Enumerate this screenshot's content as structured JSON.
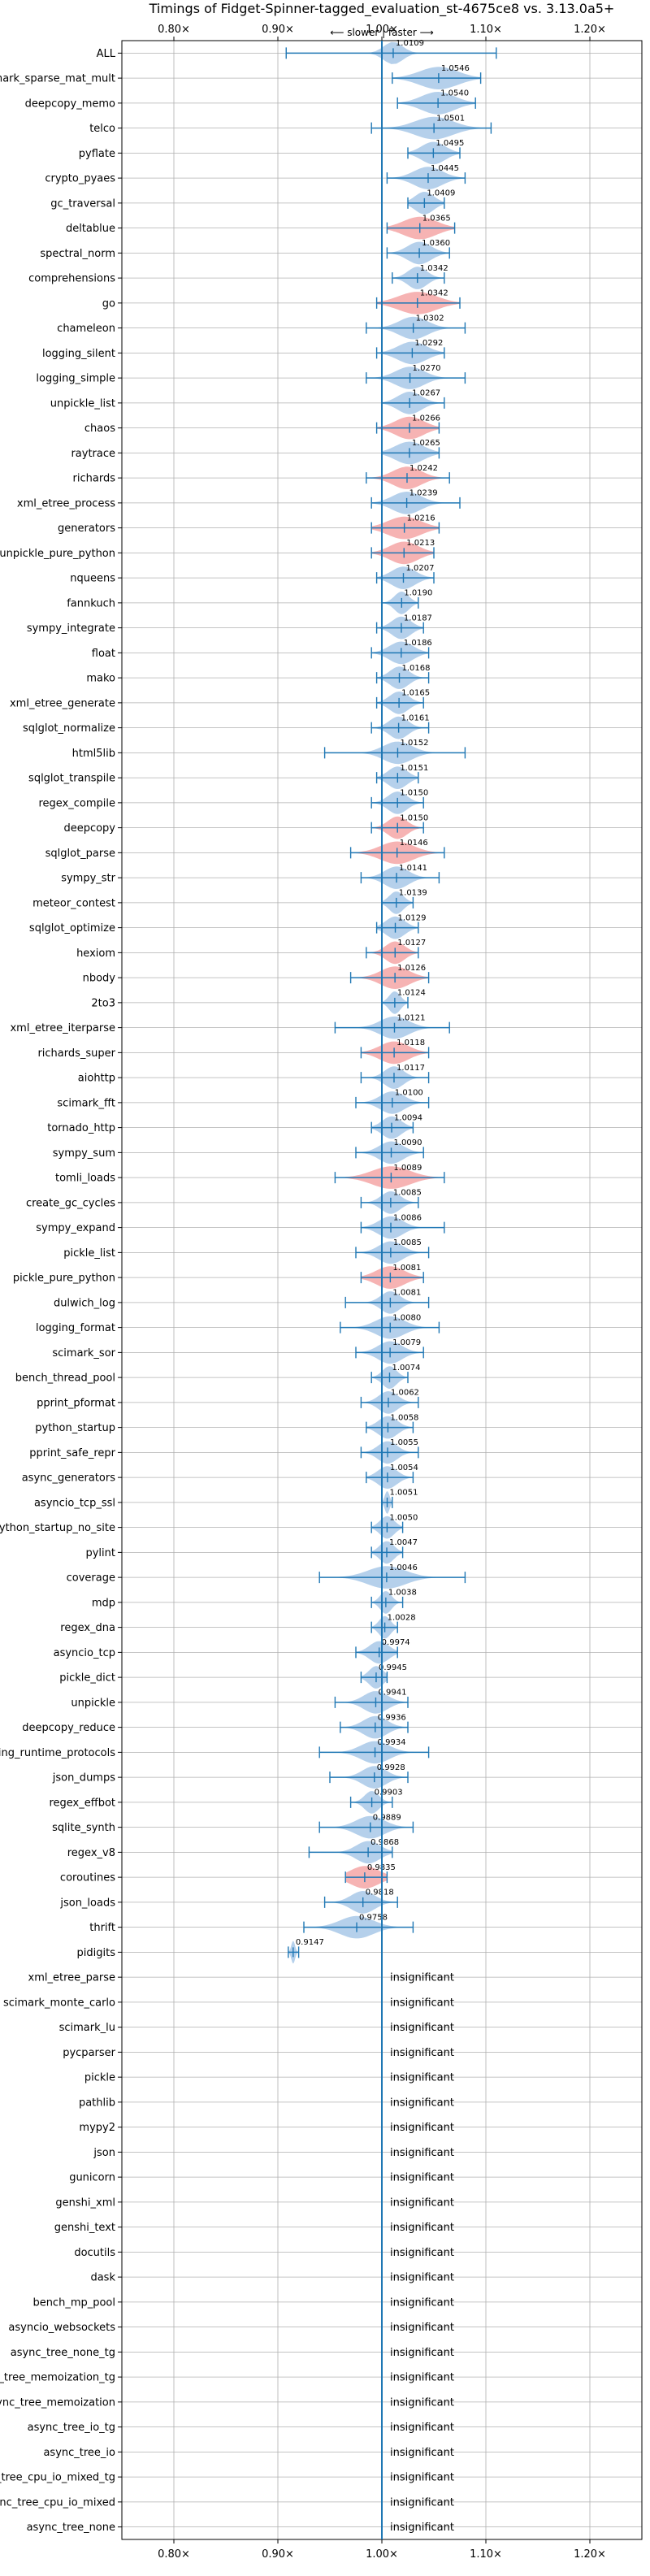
{
  "chart_data": {
    "type": "violin",
    "title": "Timings of Fidget-Spinner-tagged_evaluation_st-4675ce8 vs. 3.13.0a5+",
    "xlabel": "",
    "ylabel": "",
    "xlim": [
      0.75,
      1.25
    ],
    "x_ticks": [
      0.8,
      0.9,
      1.0,
      1.1,
      1.2
    ],
    "x_tick_labels": [
      "0.80×",
      "0.90×",
      "1.00×",
      "1.10×",
      "1.20×"
    ],
    "reference_line": 1.0,
    "direction_annotation": "⟵ slower | faster ⟶",
    "grid": true,
    "colors": {
      "faster": "#a8c8e8",
      "slower": "#f4a6a6",
      "whisker": "#1f77b4",
      "grid": "#b0b0b0"
    },
    "benchmarks": [
      {
        "name": "ALL",
        "value": 1.0109,
        "label": "1.0109",
        "lo": 0.908,
        "hi": 1.11,
        "spread": 0.02,
        "color": "blue"
      },
      {
        "name": "scimark_sparse_mat_mult",
        "value": 1.0546,
        "label": "1.0546",
        "lo": 1.01,
        "hi": 1.095,
        "spread": 0.04,
        "color": "blue"
      },
      {
        "name": "deepcopy_memo",
        "value": 1.054,
        "label": "1.0540",
        "lo": 1.015,
        "hi": 1.09,
        "spread": 0.035,
        "color": "blue"
      },
      {
        "name": "telco",
        "value": 1.0501,
        "label": "1.0501",
        "lo": 0.99,
        "hi": 1.105,
        "spread": 0.04,
        "color": "blue"
      },
      {
        "name": "pyflate",
        "value": 1.0495,
        "label": "1.0495",
        "lo": 1.025,
        "hi": 1.075,
        "spread": 0.025,
        "color": "blue"
      },
      {
        "name": "crypto_pyaes",
        "value": 1.0445,
        "label": "1.0445",
        "lo": 1.005,
        "hi": 1.08,
        "spread": 0.03,
        "color": "blue"
      },
      {
        "name": "gc_traversal",
        "value": 1.0409,
        "label": "1.0409",
        "lo": 1.025,
        "hi": 1.06,
        "spread": 0.02,
        "color": "blue"
      },
      {
        "name": "deltablue",
        "value": 1.0365,
        "label": "1.0365",
        "lo": 1.005,
        "hi": 1.07,
        "spread": 0.035,
        "color": "red"
      },
      {
        "name": "spectral_norm",
        "value": 1.036,
        "label": "1.0360",
        "lo": 1.005,
        "hi": 1.065,
        "spread": 0.025,
        "color": "blue"
      },
      {
        "name": "comprehensions",
        "value": 1.0342,
        "label": "1.0342",
        "lo": 1.01,
        "hi": 1.06,
        "spread": 0.02,
        "color": "blue"
      },
      {
        "name": "go",
        "value": 1.0342,
        "label": "1.0342",
        "lo": 0.995,
        "hi": 1.075,
        "spread": 0.04,
        "color": "red"
      },
      {
        "name": "chameleon",
        "value": 1.0302,
        "label": "1.0302",
        "lo": 0.985,
        "hi": 1.08,
        "spread": 0.03,
        "color": "blue"
      },
      {
        "name": "logging_silent",
        "value": 1.0292,
        "label": "1.0292",
        "lo": 0.995,
        "hi": 1.06,
        "spread": 0.03,
        "color": "blue"
      },
      {
        "name": "logging_simple",
        "value": 1.027,
        "label": "1.0270",
        "lo": 0.985,
        "hi": 1.08,
        "spread": 0.03,
        "color": "blue"
      },
      {
        "name": "unpickle_list",
        "value": 1.0267,
        "label": "1.0267",
        "lo": 1.0,
        "hi": 1.06,
        "spread": 0.025,
        "color": "blue"
      },
      {
        "name": "chaos",
        "value": 1.0266,
        "label": "1.0266",
        "lo": 0.995,
        "hi": 1.055,
        "spread": 0.03,
        "color": "red"
      },
      {
        "name": "raytrace",
        "value": 1.0265,
        "label": "1.0265",
        "lo": 1.0,
        "hi": 1.055,
        "spread": 0.03,
        "color": "blue"
      },
      {
        "name": "richards",
        "value": 1.0242,
        "label": "1.0242",
        "lo": 0.985,
        "hi": 1.065,
        "spread": 0.03,
        "color": "red"
      },
      {
        "name": "xml_etree_process",
        "value": 1.0239,
        "label": "1.0239",
        "lo": 0.99,
        "hi": 1.075,
        "spread": 0.03,
        "color": "blue"
      },
      {
        "name": "generators",
        "value": 1.0216,
        "label": "1.0216",
        "lo": 0.99,
        "hi": 1.055,
        "spread": 0.035,
        "color": "red"
      },
      {
        "name": "unpickle_pure_python",
        "value": 1.0213,
        "label": "1.0213",
        "lo": 0.99,
        "hi": 1.05,
        "spread": 0.03,
        "color": "red"
      },
      {
        "name": "nqueens",
        "value": 1.0207,
        "label": "1.0207",
        "lo": 0.995,
        "hi": 1.05,
        "spread": 0.025,
        "color": "blue"
      },
      {
        "name": "fannkuch",
        "value": 1.019,
        "label": "1.0190",
        "lo": 1.0,
        "hi": 1.035,
        "spread": 0.015,
        "color": "blue"
      },
      {
        "name": "sympy_integrate",
        "value": 1.0187,
        "label": "1.0187",
        "lo": 0.995,
        "hi": 1.04,
        "spread": 0.02,
        "color": "blue"
      },
      {
        "name": "float",
        "value": 1.0186,
        "label": "1.0186",
        "lo": 0.99,
        "hi": 1.045,
        "spread": 0.025,
        "color": "blue"
      },
      {
        "name": "mako",
        "value": 1.0168,
        "label": "1.0168",
        "lo": 0.995,
        "hi": 1.045,
        "spread": 0.02,
        "color": "blue"
      },
      {
        "name": "xml_etree_generate",
        "value": 1.0165,
        "label": "1.0165",
        "lo": 0.995,
        "hi": 1.04,
        "spread": 0.02,
        "color": "blue"
      },
      {
        "name": "sqlglot_normalize",
        "value": 1.0161,
        "label": "1.0161",
        "lo": 0.99,
        "hi": 1.045,
        "spread": 0.02,
        "color": "blue"
      },
      {
        "name": "html5lib",
        "value": 1.0152,
        "label": "1.0152",
        "lo": 0.945,
        "hi": 1.08,
        "spread": 0.03,
        "color": "blue"
      },
      {
        "name": "sqlglot_transpile",
        "value": 1.0151,
        "label": "1.0151",
        "lo": 0.995,
        "hi": 1.035,
        "spread": 0.02,
        "color": "blue"
      },
      {
        "name": "regex_compile",
        "value": 1.015,
        "label": "1.0150",
        "lo": 0.99,
        "hi": 1.04,
        "spread": 0.02,
        "color": "blue"
      },
      {
        "name": "deepcopy",
        "value": 1.015,
        "label": "1.0150",
        "lo": 0.99,
        "hi": 1.04,
        "spread": 0.02,
        "color": "red"
      },
      {
        "name": "sqlglot_parse",
        "value": 1.0146,
        "label": "1.0146",
        "lo": 0.97,
        "hi": 1.06,
        "spread": 0.035,
        "color": "red"
      },
      {
        "name": "sympy_str",
        "value": 1.0141,
        "label": "1.0141",
        "lo": 0.98,
        "hi": 1.055,
        "spread": 0.025,
        "color": "blue"
      },
      {
        "name": "meteor_contest",
        "value": 1.0139,
        "label": "1.0139",
        "lo": 1.0,
        "hi": 1.03,
        "spread": 0.015,
        "color": "blue"
      },
      {
        "name": "sqlglot_optimize",
        "value": 1.0129,
        "label": "1.0129",
        "lo": 0.995,
        "hi": 1.035,
        "spread": 0.02,
        "color": "blue"
      },
      {
        "name": "hexiom",
        "value": 1.0127,
        "label": "1.0127",
        "lo": 0.985,
        "hi": 1.035,
        "spread": 0.02,
        "color": "red"
      },
      {
        "name": "nbody",
        "value": 1.0126,
        "label": "1.0126",
        "lo": 0.97,
        "hi": 1.045,
        "spread": 0.03,
        "color": "red"
      },
      {
        "name": "2to3",
        "value": 1.0124,
        "label": "1.0124",
        "lo": 1.0,
        "hi": 1.025,
        "spread": 0.012,
        "color": "blue"
      },
      {
        "name": "xml_etree_iterparse",
        "value": 1.0121,
        "label": "1.0121",
        "lo": 0.955,
        "hi": 1.065,
        "spread": 0.03,
        "color": "blue"
      },
      {
        "name": "richards_super",
        "value": 1.0118,
        "label": "1.0118",
        "lo": 0.98,
        "hi": 1.045,
        "spread": 0.03,
        "color": "red"
      },
      {
        "name": "aiohttp",
        "value": 1.0117,
        "label": "1.0117",
        "lo": 0.98,
        "hi": 1.045,
        "spread": 0.02,
        "color": "blue"
      },
      {
        "name": "scimark_fft",
        "value": 1.01,
        "label": "1.0100",
        "lo": 0.975,
        "hi": 1.045,
        "spread": 0.025,
        "color": "blue"
      },
      {
        "name": "tornado_http",
        "value": 1.0094,
        "label": "1.0094",
        "lo": 0.99,
        "hi": 1.03,
        "spread": 0.02,
        "color": "blue"
      },
      {
        "name": "sympy_sum",
        "value": 1.009,
        "label": "1.0090",
        "lo": 0.975,
        "hi": 1.04,
        "spread": 0.025,
        "color": "blue"
      },
      {
        "name": "tomli_loads",
        "value": 1.0089,
        "label": "1.0089",
        "lo": 0.955,
        "hi": 1.06,
        "spread": 0.04,
        "color": "red"
      },
      {
        "name": "create_gc_cycles",
        "value": 1.0085,
        "label": "1.0085",
        "lo": 0.98,
        "hi": 1.035,
        "spread": 0.02,
        "color": "blue"
      },
      {
        "name": "sympy_expand",
        "value": 1.0086,
        "label": "1.0086",
        "lo": 0.98,
        "hi": 1.06,
        "spread": 0.025,
        "color": "blue"
      },
      {
        "name": "pickle_list",
        "value": 1.0085,
        "label": "1.0085",
        "lo": 0.975,
        "hi": 1.045,
        "spread": 0.025,
        "color": "blue"
      },
      {
        "name": "pickle_pure_python",
        "value": 1.0081,
        "label": "1.0081",
        "lo": 0.98,
        "hi": 1.04,
        "spread": 0.03,
        "color": "red"
      },
      {
        "name": "dulwich_log",
        "value": 1.0081,
        "label": "1.0081",
        "lo": 0.965,
        "hi": 1.045,
        "spread": 0.02,
        "color": "blue"
      },
      {
        "name": "logging_format",
        "value": 1.008,
        "label": "1.0080",
        "lo": 0.96,
        "hi": 1.055,
        "spread": 0.03,
        "color": "blue"
      },
      {
        "name": "scimark_sor",
        "value": 1.0079,
        "label": "1.0079",
        "lo": 0.975,
        "hi": 1.04,
        "spread": 0.025,
        "color": "blue"
      },
      {
        "name": "bench_thread_pool",
        "value": 1.0074,
        "label": "1.0074",
        "lo": 0.99,
        "hi": 1.025,
        "spread": 0.015,
        "color": "blue"
      },
      {
        "name": "pprint_pformat",
        "value": 1.0062,
        "label": "1.0062",
        "lo": 0.98,
        "hi": 1.035,
        "spread": 0.02,
        "color": "blue"
      },
      {
        "name": "python_startup",
        "value": 1.0058,
        "label": "1.0058",
        "lo": 0.985,
        "hi": 1.03,
        "spread": 0.02,
        "color": "blue"
      },
      {
        "name": "pprint_safe_repr",
        "value": 1.0055,
        "label": "1.0055",
        "lo": 0.98,
        "hi": 1.035,
        "spread": 0.02,
        "color": "blue"
      },
      {
        "name": "async_generators",
        "value": 1.0054,
        "label": "1.0054",
        "lo": 0.985,
        "hi": 1.03,
        "spread": 0.02,
        "color": "blue"
      },
      {
        "name": "asyncio_tcp_ssl",
        "value": 1.0051,
        "label": "1.0051",
        "lo": 1.0,
        "hi": 1.01,
        "spread": 0.005,
        "color": "blue"
      },
      {
        "name": "python_startup_no_site",
        "value": 1.005,
        "label": "1.0050",
        "lo": 0.99,
        "hi": 1.02,
        "spread": 0.015,
        "color": "blue"
      },
      {
        "name": "pylint",
        "value": 1.0047,
        "label": "1.0047",
        "lo": 0.99,
        "hi": 1.02,
        "spread": 0.015,
        "color": "blue"
      },
      {
        "name": "coverage",
        "value": 1.0046,
        "label": "1.0046",
        "lo": 0.94,
        "hi": 1.08,
        "spread": 0.04,
        "color": "blue"
      },
      {
        "name": "mdp",
        "value": 1.0038,
        "label": "1.0038",
        "lo": 0.99,
        "hi": 1.02,
        "spread": 0.012,
        "color": "blue"
      },
      {
        "name": "regex_dna",
        "value": 1.0028,
        "label": "1.0028",
        "lo": 0.99,
        "hi": 1.015,
        "spread": 0.012,
        "color": "blue"
      },
      {
        "name": "asyncio_tcp",
        "value": 0.9974,
        "label": "0.9974",
        "lo": 0.975,
        "hi": 1.015,
        "spread": 0.02,
        "color": "blue"
      },
      {
        "name": "pickle_dict",
        "value": 0.9945,
        "label": "0.9945",
        "lo": 0.98,
        "hi": 1.005,
        "spread": 0.015,
        "color": "blue"
      },
      {
        "name": "unpickle",
        "value": 0.9941,
        "label": "0.9941",
        "lo": 0.955,
        "hi": 1.025,
        "spread": 0.025,
        "color": "blue"
      },
      {
        "name": "deepcopy_reduce",
        "value": 0.9936,
        "label": "0.9936",
        "lo": 0.96,
        "hi": 1.025,
        "spread": 0.025,
        "color": "blue"
      },
      {
        "name": "typing_runtime_protocols",
        "value": 0.9934,
        "label": "0.9934",
        "lo": 0.94,
        "hi": 1.045,
        "spread": 0.03,
        "color": "blue"
      },
      {
        "name": "json_dumps",
        "value": 0.9928,
        "label": "0.9928",
        "lo": 0.95,
        "hi": 1.025,
        "spread": 0.025,
        "color": "blue"
      },
      {
        "name": "regex_effbot",
        "value": 0.9903,
        "label": "0.9903",
        "lo": 0.97,
        "hi": 1.01,
        "spread": 0.015,
        "color": "blue"
      },
      {
        "name": "sqlite_synth",
        "value": 0.9889,
        "label": "0.9889",
        "lo": 0.94,
        "hi": 1.03,
        "spread": 0.03,
        "color": "blue"
      },
      {
        "name": "regex_v8",
        "value": 0.9868,
        "label": "0.9868",
        "lo": 0.93,
        "hi": 1.01,
        "spread": 0.025,
        "color": "blue"
      },
      {
        "name": "coroutines",
        "value": 0.9835,
        "label": "0.9835",
        "lo": 0.965,
        "hi": 1.005,
        "spread": 0.03,
        "color": "red"
      },
      {
        "name": "json_loads",
        "value": 0.9818,
        "label": "0.9818",
        "lo": 0.945,
        "hi": 1.015,
        "spread": 0.025,
        "color": "blue"
      },
      {
        "name": "thrift",
        "value": 0.9758,
        "label": "0.9758",
        "lo": 0.925,
        "hi": 1.03,
        "spread": 0.035,
        "color": "blue"
      },
      {
        "name": "pidigits",
        "value": 0.9147,
        "label": "0.9147",
        "lo": 0.91,
        "hi": 0.92,
        "spread": 0.004,
        "color": "blue"
      },
      {
        "name": "xml_etree_parse",
        "insignificant": true
      },
      {
        "name": "scimark_monte_carlo",
        "insignificant": true
      },
      {
        "name": "scimark_lu",
        "insignificant": true
      },
      {
        "name": "pycparser",
        "insignificant": true
      },
      {
        "name": "pickle",
        "insignificant": true
      },
      {
        "name": "pathlib",
        "insignificant": true
      },
      {
        "name": "mypy2",
        "insignificant": true
      },
      {
        "name": "json",
        "insignificant": true
      },
      {
        "name": "gunicorn",
        "insignificant": true
      },
      {
        "name": "genshi_xml",
        "insignificant": true
      },
      {
        "name": "genshi_text",
        "insignificant": true
      },
      {
        "name": "docutils",
        "insignificant": true
      },
      {
        "name": "dask",
        "insignificant": true
      },
      {
        "name": "bench_mp_pool",
        "insignificant": true
      },
      {
        "name": "asyncio_websockets",
        "insignificant": true
      },
      {
        "name": "async_tree_none_tg",
        "insignificant": true
      },
      {
        "name": "async_tree_memoization_tg",
        "insignificant": true
      },
      {
        "name": "async_tree_memoization",
        "insignificant": true
      },
      {
        "name": "async_tree_io_tg",
        "insignificant": true
      },
      {
        "name": "async_tree_io",
        "insignificant": true
      },
      {
        "name": "async_tree_cpu_io_mixed_tg",
        "insignificant": true
      },
      {
        "name": "async_tree_cpu_io_mixed",
        "insignificant": true
      },
      {
        "name": "async_tree_none",
        "insignificant": true
      }
    ],
    "insignificant_label": "insignificant"
  }
}
